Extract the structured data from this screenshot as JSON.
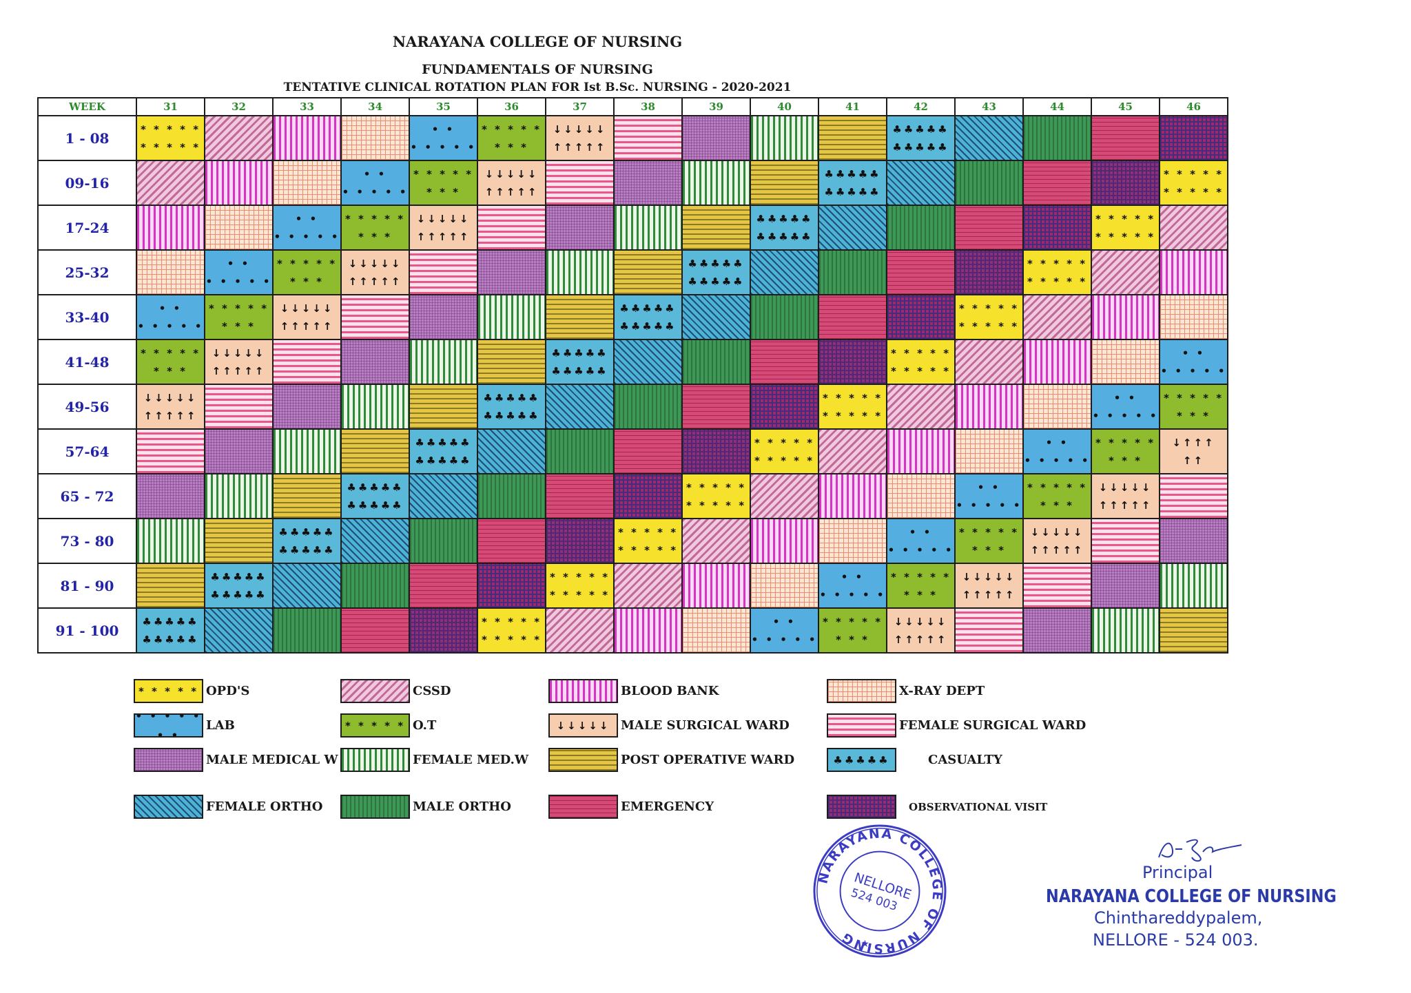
{
  "header": {
    "college": "NARAYANA COLLEGE OF NURSING",
    "subject": "FUNDAMENTALS OF NURSING",
    "plan_title": "TENTATIVE CLINICAL  ROTATION PLAN  FOR  Ist  B.Sc.  NURSING - 2020-2021"
  },
  "table": {
    "corner_label": "WEEK",
    "batches": [
      "31",
      "32",
      "33",
      "34",
      "35",
      "36",
      "37",
      "38",
      "39",
      "40",
      "41",
      "42",
      "43",
      "44",
      "45",
      "46"
    ],
    "rows": [
      {
        "weeks": "1 - 08",
        "cells": [
          "opd",
          "cssd",
          "bb",
          "xray",
          "lab",
          "ot",
          "msw",
          "fsw",
          "mmw",
          "fmw",
          "pow",
          "cas",
          "fo",
          "mo",
          "em",
          "obs"
        ]
      },
      {
        "weeks": "09-16",
        "cells": [
          "cssd",
          "bb",
          "xray",
          "lab",
          "ot",
          "msw",
          "fsw",
          "mmw",
          "fmw",
          "pow",
          "cas",
          "fo",
          "mo",
          "em",
          "obs",
          "opd"
        ]
      },
      {
        "weeks": "17-24",
        "cells": [
          "bb",
          "xray",
          "lab",
          "ot",
          "msw",
          "fsw",
          "mmw",
          "fmw",
          "pow",
          "cas",
          "fo",
          "mo",
          "em",
          "obs",
          "opd",
          "cssd"
        ]
      },
      {
        "weeks": "25-32",
        "cells": [
          "xray",
          "lab",
          "ot",
          "msw",
          "fsw",
          "mmw",
          "fmw",
          "pow",
          "cas",
          "fo",
          "mo",
          "em",
          "obs",
          "opd",
          "cssd",
          "bb"
        ]
      },
      {
        "weeks": "33-40",
        "cells": [
          "lab",
          "ot",
          "msw",
          "fsw",
          "mmw",
          "fmw",
          "pow",
          "cas",
          "fo",
          "mo",
          "em",
          "obs",
          "opd",
          "cssd",
          "bb",
          "xray"
        ]
      },
      {
        "weeks": "41-48",
        "cells": [
          "ot",
          "msw",
          "fsw",
          "mmw",
          "fmw",
          "pow",
          "cas",
          "fo",
          "mo",
          "em",
          "obs",
          "opd",
          "cssd",
          "bb",
          "xray",
          "lab"
        ]
      },
      {
        "weeks": "49-56",
        "cells": [
          "msw",
          "fsw",
          "mmw",
          "fmw",
          "pow",
          "cas",
          "fo",
          "mo",
          "em",
          "obs",
          "opd",
          "cssd",
          "bb",
          "xray",
          "lab",
          "ot"
        ]
      },
      {
        "weeks": "57-64",
        "cells": [
          "fsw",
          "mmw",
          "fmw",
          "pow",
          "cas",
          "fo",
          "mo",
          "em",
          "obs",
          "opd",
          "cssd",
          "bb",
          "xray",
          "lab",
          "ot",
          "msw"
        ]
      },
      {
        "weeks": "65 - 72",
        "cells": [
          "mmw",
          "fmw",
          "pow",
          "cas",
          "fo",
          "mo",
          "em",
          "obs",
          "opd",
          "cssd",
          "bb",
          "xray",
          "lab",
          "ot",
          "msw",
          "fsw"
        ]
      },
      {
        "weeks": "73 - 80",
        "cells": [
          "fmw",
          "pow",
          "cas",
          "fo",
          "mo",
          "em",
          "obs",
          "opd",
          "cssd",
          "bb",
          "xray",
          "lab",
          "ot",
          "msw",
          "fsw",
          "mmw"
        ]
      },
      {
        "weeks": "81 - 90",
        "cells": [
          "pow",
          "cas",
          "fo",
          "mo",
          "em",
          "obs",
          "opd",
          "cssd",
          "bb",
          "xray",
          "lab",
          "ot",
          "msw",
          "fsw",
          "mmw",
          "fmw"
        ]
      },
      {
        "weeks": "91 - 100",
        "cells": [
          "cas",
          "fo",
          "mo",
          "em",
          "obs",
          "opd",
          "cssd",
          "bb",
          "xray",
          "lab",
          "ot",
          "msw",
          "fsw",
          "mmw",
          "fmw",
          "pow"
        ]
      }
    ]
  },
  "symbols": {
    "opd": "* * * * *\n* * * * *",
    "lab": "• • • • • • •\n• • • • • • •",
    "ot": "* * * * *\n* * *",
    "msw": "↓↓↓↓↓\n↑↑↑↑↑",
    "cas": "♣♣♣♣♣\n♣♣♣♣♣"
  },
  "symbol_variants": {
    "ot_r2c16": "* * *\n* * *",
    "msw_r8c16": "↓↑↑↑\n↑↑"
  },
  "legend": [
    {
      "key": "opd",
      "label": "OPD'S",
      "symbol": "* * * * *"
    },
    {
      "key": "cssd",
      "label": "CSSD",
      "symbol": ""
    },
    {
      "key": "bb",
      "label": "BLOOD BANK",
      "symbol": ""
    },
    {
      "key": "xray",
      "label": "X-RAY DEPT",
      "symbol": ""
    },
    {
      "key": "lab",
      "label": "LAB",
      "symbol": "• • • • • • •"
    },
    {
      "key": "ot",
      "label": "O.T",
      "symbol": "* * * * *"
    },
    {
      "key": "msw",
      "label": "MALE SURGICAL WARD",
      "symbol": "↓↓↓↓↓"
    },
    {
      "key": "fsw",
      "label": "FEMALE SURGICAL WARD",
      "symbol": ""
    },
    {
      "key": "mmw",
      "label": "MALE MEDICAL W",
      "symbol": ""
    },
    {
      "key": "fmw",
      "label": "FEMALE MED.W",
      "symbol": ""
    },
    {
      "key": "pow",
      "label": "POST OPERATIVE WARD",
      "symbol": ""
    },
    {
      "key": "cas",
      "label": "CASUALTY",
      "symbol": "♣♣♣♣♣"
    },
    {
      "key": "fo",
      "label": "FEMALE ORTHO",
      "symbol": ""
    },
    {
      "key": "mo",
      "label": "MALE ORTHO",
      "symbol": ""
    },
    {
      "key": "em",
      "label": "EMERGENCY",
      "symbol": ""
    },
    {
      "key": "obs",
      "label": "OBSERVATIONAL VISIT",
      "symbol": ""
    }
  ],
  "stamp": {
    "ring_text": "NARAYANA COLLEGE OF NURSING",
    "center_line1": "NELLORE",
    "center_line2": "524 003",
    "color": "#3b3bc4"
  },
  "signature": {
    "title": "Principal",
    "name": "NARAYANA COLLEGE OF NURSING",
    "line2": "Chinthareddypalem,",
    "line3": "NELLORE - 524 003.",
    "color": "#2a3aa8"
  }
}
